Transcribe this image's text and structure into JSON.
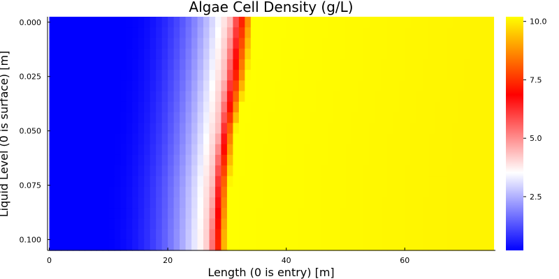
{
  "chart_data": {
    "type": "heatmap",
    "title": "Algae Cell Density (g/L)",
    "xlabel": "Length (0 is entry) [m]",
    "ylabel": "Liquid Level (0 is surface) [m]",
    "xlim": [
      -0.3,
      75.3
    ],
    "ylim": [
      0.105,
      -0.0025
    ],
    "x_ticks": [
      {
        "value": 0,
        "label": "0"
      },
      {
        "value": 20,
        "label": "20"
      },
      {
        "value": 40,
        "label": "40"
      },
      {
        "value": 60,
        "label": "60"
      }
    ],
    "y_ticks": [
      {
        "value": 0.0,
        "label": "0.000"
      },
      {
        "value": 0.025,
        "label": "0.025"
      },
      {
        "value": 0.05,
        "label": "0.050"
      },
      {
        "value": 0.075,
        "label": "0.075"
      },
      {
        "value": 0.1,
        "label": "0.100"
      }
    ],
    "colorbar": {
      "min": 0.2,
      "max": 10.2,
      "colors": [
        "#0000ff",
        "#ffffff",
        "#ff0000",
        "#ffff00"
      ],
      "ticks": [
        {
          "value": 2.5,
          "label": "2.5"
        },
        {
          "value": 5.0,
          "label": "5.0"
        },
        {
          "value": 7.5,
          "label": "7.5"
        },
        {
          "value": 10.0,
          "label": "10.0"
        }
      ]
    },
    "grid": false,
    "x_cells": {
      "start": 0,
      "end": 75,
      "count": 75
    },
    "rows": [
      {
        "depth": 0.0,
        "front_start": 30.5,
        "front_end": 34.5
      },
      {
        "depth": 0.025,
        "front_start": 29.5,
        "front_end": 33.5
      },
      {
        "depth": 0.05,
        "front_start": 28.5,
        "front_end": 31.5
      },
      {
        "depth": 0.075,
        "front_start": 27.5,
        "front_end": 30.5
      },
      {
        "depth": 0.1,
        "front_start": 27.0,
        "front_end": 30.0
      }
    ],
    "low_value": 0.2,
    "high_value": 10.2
  }
}
